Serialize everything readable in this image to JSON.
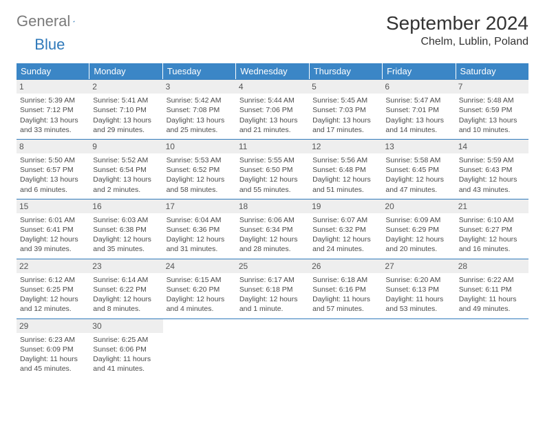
{
  "logo": {
    "text_gray": "General",
    "text_blue": "Blue"
  },
  "title": "September 2024",
  "location": "Chelm, Lublin, Poland",
  "colors": {
    "header_bg": "#3b86c6",
    "row_border": "#2f79ba",
    "daynum_bg": "#eeeeee",
    "text": "#333333",
    "logo_gray": "#7a7a7a",
    "logo_blue": "#2f79ba"
  },
  "fonts": {
    "title_pt": 28,
    "location_pt": 16,
    "dow_pt": 13,
    "body_pt": 10.5
  },
  "days_of_week": [
    "Sunday",
    "Monday",
    "Tuesday",
    "Wednesday",
    "Thursday",
    "Friday",
    "Saturday"
  ],
  "weeks": [
    [
      {
        "num": "1",
        "sunrise": "Sunrise: 5:39 AM",
        "sunset": "Sunset: 7:12 PM",
        "daylight": "Daylight: 13 hours and 33 minutes."
      },
      {
        "num": "2",
        "sunrise": "Sunrise: 5:41 AM",
        "sunset": "Sunset: 7:10 PM",
        "daylight": "Daylight: 13 hours and 29 minutes."
      },
      {
        "num": "3",
        "sunrise": "Sunrise: 5:42 AM",
        "sunset": "Sunset: 7:08 PM",
        "daylight": "Daylight: 13 hours and 25 minutes."
      },
      {
        "num": "4",
        "sunrise": "Sunrise: 5:44 AM",
        "sunset": "Sunset: 7:06 PM",
        "daylight": "Daylight: 13 hours and 21 minutes."
      },
      {
        "num": "5",
        "sunrise": "Sunrise: 5:45 AM",
        "sunset": "Sunset: 7:03 PM",
        "daylight": "Daylight: 13 hours and 17 minutes."
      },
      {
        "num": "6",
        "sunrise": "Sunrise: 5:47 AM",
        "sunset": "Sunset: 7:01 PM",
        "daylight": "Daylight: 13 hours and 14 minutes."
      },
      {
        "num": "7",
        "sunrise": "Sunrise: 5:48 AM",
        "sunset": "Sunset: 6:59 PM",
        "daylight": "Daylight: 13 hours and 10 minutes."
      }
    ],
    [
      {
        "num": "8",
        "sunrise": "Sunrise: 5:50 AM",
        "sunset": "Sunset: 6:57 PM",
        "daylight": "Daylight: 13 hours and 6 minutes."
      },
      {
        "num": "9",
        "sunrise": "Sunrise: 5:52 AM",
        "sunset": "Sunset: 6:54 PM",
        "daylight": "Daylight: 13 hours and 2 minutes."
      },
      {
        "num": "10",
        "sunrise": "Sunrise: 5:53 AM",
        "sunset": "Sunset: 6:52 PM",
        "daylight": "Daylight: 12 hours and 58 minutes."
      },
      {
        "num": "11",
        "sunrise": "Sunrise: 5:55 AM",
        "sunset": "Sunset: 6:50 PM",
        "daylight": "Daylight: 12 hours and 55 minutes."
      },
      {
        "num": "12",
        "sunrise": "Sunrise: 5:56 AM",
        "sunset": "Sunset: 6:48 PM",
        "daylight": "Daylight: 12 hours and 51 minutes."
      },
      {
        "num": "13",
        "sunrise": "Sunrise: 5:58 AM",
        "sunset": "Sunset: 6:45 PM",
        "daylight": "Daylight: 12 hours and 47 minutes."
      },
      {
        "num": "14",
        "sunrise": "Sunrise: 5:59 AM",
        "sunset": "Sunset: 6:43 PM",
        "daylight": "Daylight: 12 hours and 43 minutes."
      }
    ],
    [
      {
        "num": "15",
        "sunrise": "Sunrise: 6:01 AM",
        "sunset": "Sunset: 6:41 PM",
        "daylight": "Daylight: 12 hours and 39 minutes."
      },
      {
        "num": "16",
        "sunrise": "Sunrise: 6:03 AM",
        "sunset": "Sunset: 6:38 PM",
        "daylight": "Daylight: 12 hours and 35 minutes."
      },
      {
        "num": "17",
        "sunrise": "Sunrise: 6:04 AM",
        "sunset": "Sunset: 6:36 PM",
        "daylight": "Daylight: 12 hours and 31 minutes."
      },
      {
        "num": "18",
        "sunrise": "Sunrise: 6:06 AM",
        "sunset": "Sunset: 6:34 PM",
        "daylight": "Daylight: 12 hours and 28 minutes."
      },
      {
        "num": "19",
        "sunrise": "Sunrise: 6:07 AM",
        "sunset": "Sunset: 6:32 PM",
        "daylight": "Daylight: 12 hours and 24 minutes."
      },
      {
        "num": "20",
        "sunrise": "Sunrise: 6:09 AM",
        "sunset": "Sunset: 6:29 PM",
        "daylight": "Daylight: 12 hours and 20 minutes."
      },
      {
        "num": "21",
        "sunrise": "Sunrise: 6:10 AM",
        "sunset": "Sunset: 6:27 PM",
        "daylight": "Daylight: 12 hours and 16 minutes."
      }
    ],
    [
      {
        "num": "22",
        "sunrise": "Sunrise: 6:12 AM",
        "sunset": "Sunset: 6:25 PM",
        "daylight": "Daylight: 12 hours and 12 minutes."
      },
      {
        "num": "23",
        "sunrise": "Sunrise: 6:14 AM",
        "sunset": "Sunset: 6:22 PM",
        "daylight": "Daylight: 12 hours and 8 minutes."
      },
      {
        "num": "24",
        "sunrise": "Sunrise: 6:15 AM",
        "sunset": "Sunset: 6:20 PM",
        "daylight": "Daylight: 12 hours and 4 minutes."
      },
      {
        "num": "25",
        "sunrise": "Sunrise: 6:17 AM",
        "sunset": "Sunset: 6:18 PM",
        "daylight": "Daylight: 12 hours and 1 minute."
      },
      {
        "num": "26",
        "sunrise": "Sunrise: 6:18 AM",
        "sunset": "Sunset: 6:16 PM",
        "daylight": "Daylight: 11 hours and 57 minutes."
      },
      {
        "num": "27",
        "sunrise": "Sunrise: 6:20 AM",
        "sunset": "Sunset: 6:13 PM",
        "daylight": "Daylight: 11 hours and 53 minutes."
      },
      {
        "num": "28",
        "sunrise": "Sunrise: 6:22 AM",
        "sunset": "Sunset: 6:11 PM",
        "daylight": "Daylight: 11 hours and 49 minutes."
      }
    ],
    [
      {
        "num": "29",
        "sunrise": "Sunrise: 6:23 AM",
        "sunset": "Sunset: 6:09 PM",
        "daylight": "Daylight: 11 hours and 45 minutes."
      },
      {
        "num": "30",
        "sunrise": "Sunrise: 6:25 AM",
        "sunset": "Sunset: 6:06 PM",
        "daylight": "Daylight: 11 hours and 41 minutes."
      },
      null,
      null,
      null,
      null,
      null
    ]
  ]
}
